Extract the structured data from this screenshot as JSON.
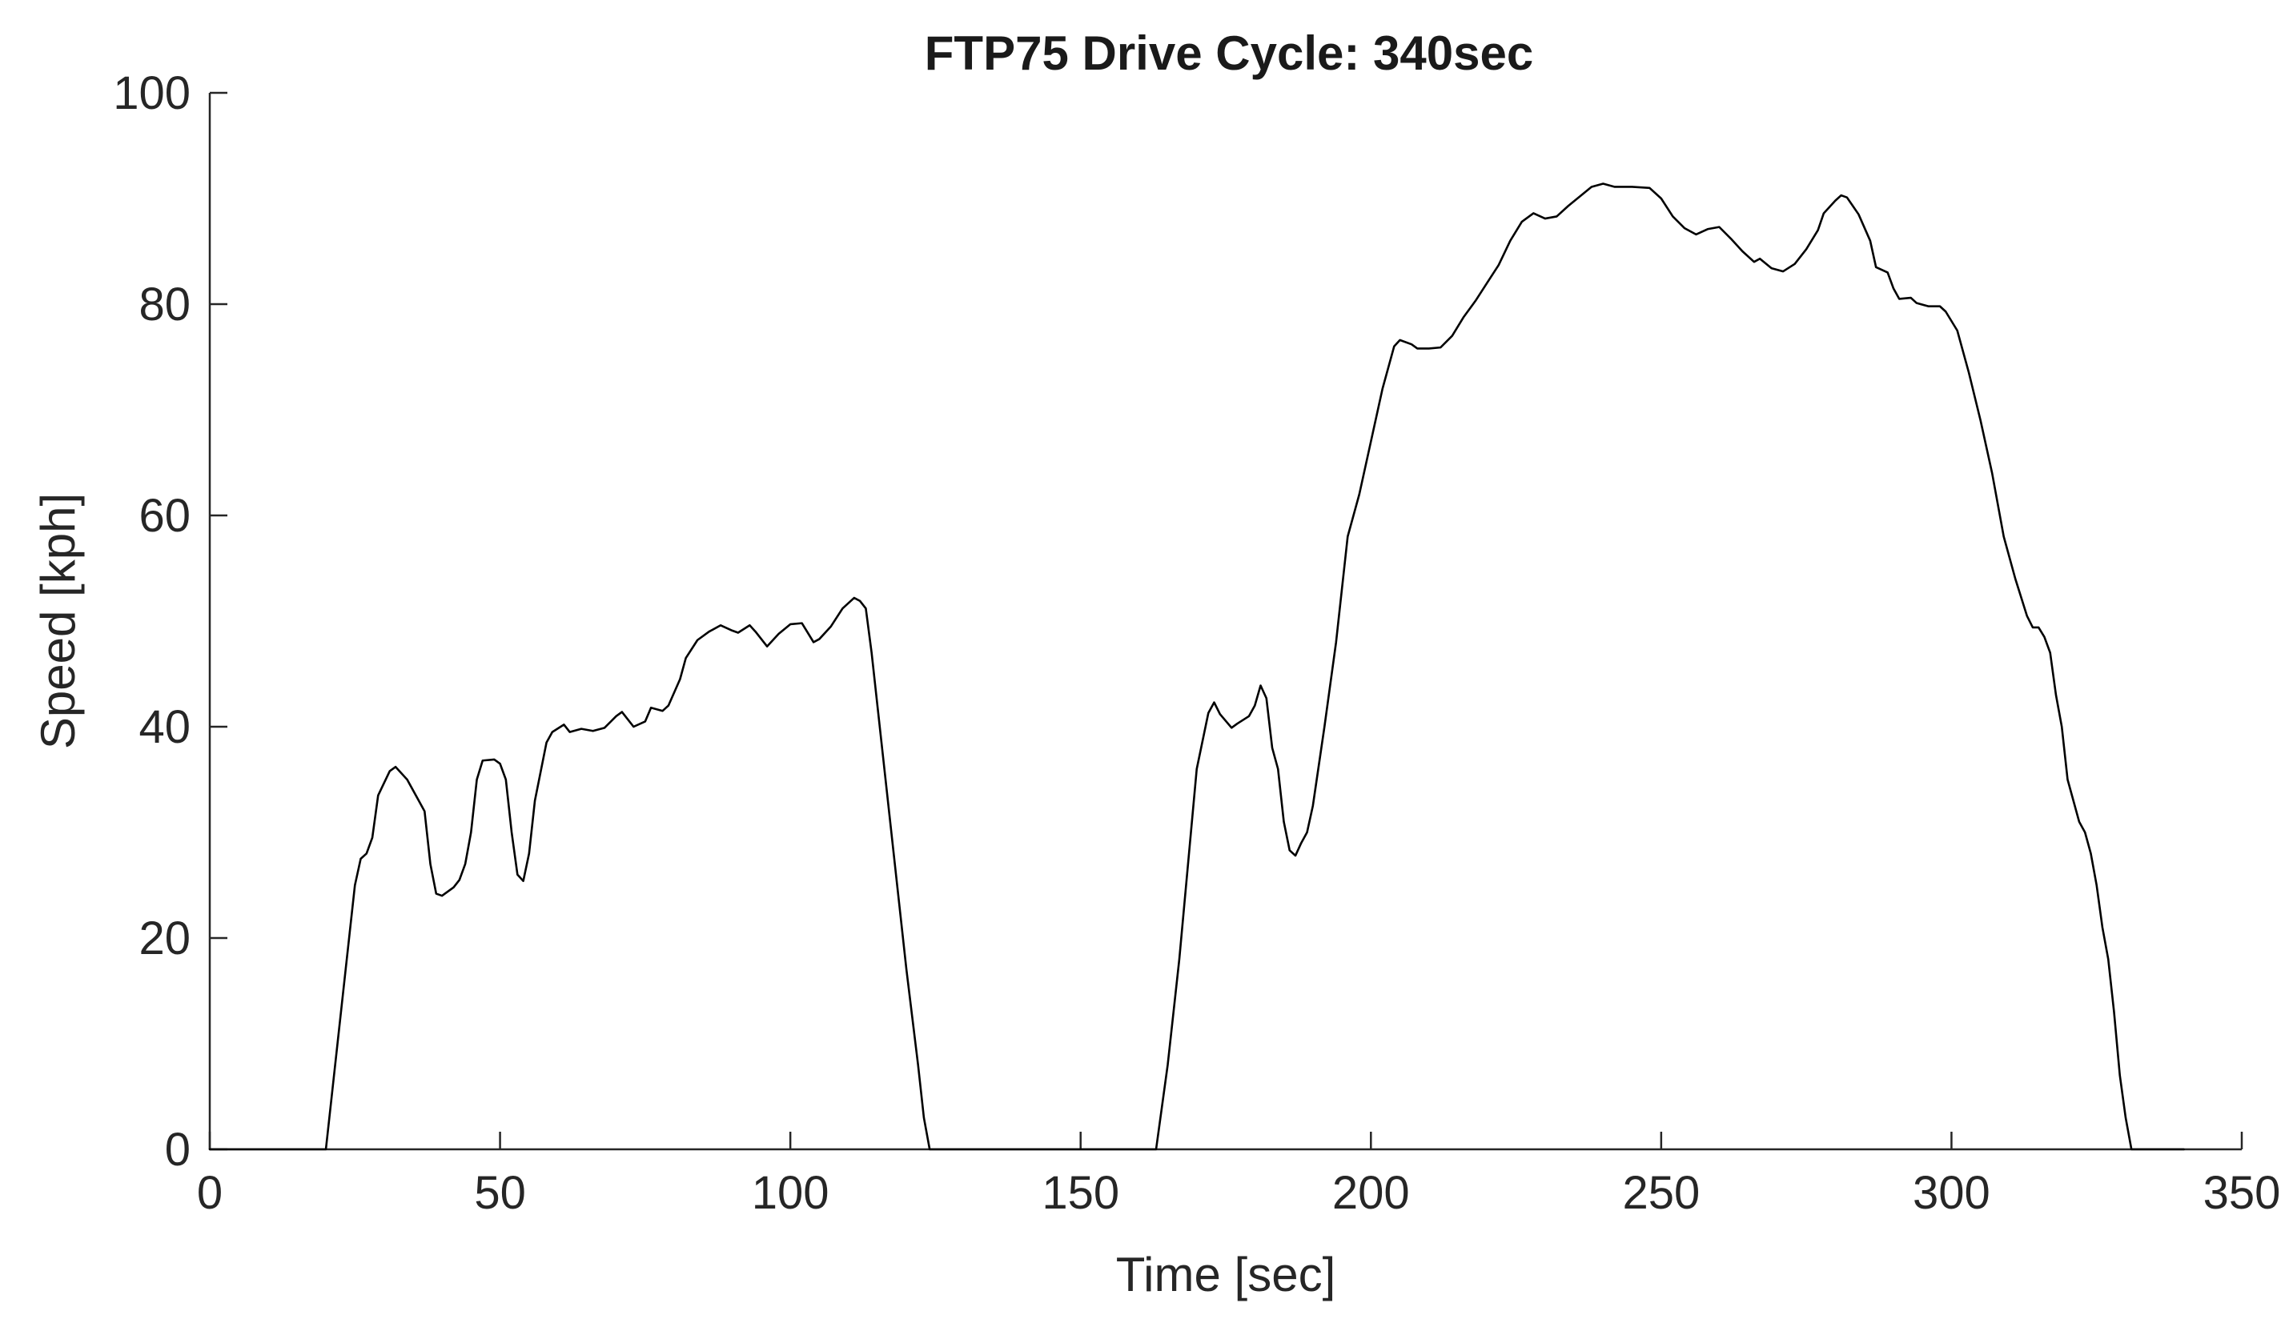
{
  "chart_data": {
    "type": "line",
    "title": "FTP75 Drive Cycle: 340sec",
    "xlabel": "Time [sec]",
    "ylabel": "Speed [kph]",
    "xlim": [
      0,
      350
    ],
    "ylim": [
      0,
      100
    ],
    "xticks": [
      0,
      50,
      100,
      150,
      200,
      250,
      300,
      350
    ],
    "yticks": [
      0,
      20,
      40,
      60,
      80,
      100
    ],
    "grid": false,
    "line_color": "#000000",
    "series": [
      {
        "points": [
          [
            0,
            0
          ],
          [
            20,
            0
          ],
          [
            21,
            5
          ],
          [
            23,
            15
          ],
          [
            25,
            25
          ],
          [
            26,
            27.5
          ],
          [
            27,
            28
          ],
          [
            28,
            29.5
          ],
          [
            29,
            33.5
          ],
          [
            31,
            35.8
          ],
          [
            32,
            36.2
          ],
          [
            34,
            35
          ],
          [
            36,
            33
          ],
          [
            37,
            32
          ],
          [
            38,
            27
          ],
          [
            39,
            24.2
          ],
          [
            40,
            24
          ],
          [
            42,
            24.8
          ],
          [
            43,
            25.5
          ],
          [
            44,
            27
          ],
          [
            45,
            30
          ],
          [
            46,
            35
          ],
          [
            47,
            36.8
          ],
          [
            49,
            36.9
          ],
          [
            50,
            36.5
          ],
          [
            51,
            35
          ],
          [
            52,
            30
          ],
          [
            53,
            26
          ],
          [
            54,
            25.4
          ],
          [
            55,
            28
          ],
          [
            56,
            33
          ],
          [
            58,
            38.5
          ],
          [
            59,
            39.5
          ],
          [
            61,
            40.2
          ],
          [
            62,
            39.5
          ],
          [
            64,
            39.8
          ],
          [
            66,
            39.6
          ],
          [
            68,
            39.9
          ],
          [
            70,
            41
          ],
          [
            71,
            41.4
          ],
          [
            73,
            40
          ],
          [
            75,
            40.5
          ],
          [
            76,
            41.8
          ],
          [
            78,
            41.5
          ],
          [
            79,
            42
          ],
          [
            81,
            44.5
          ],
          [
            82,
            46.5
          ],
          [
            84,
            48.2
          ],
          [
            86,
            49
          ],
          [
            88,
            49.6
          ],
          [
            90,
            49.1
          ],
          [
            91,
            48.9
          ],
          [
            93,
            49.6
          ],
          [
            94,
            49
          ],
          [
            96,
            47.6
          ],
          [
            98,
            48.8
          ],
          [
            100,
            49.7
          ],
          [
            102,
            49.8
          ],
          [
            104,
            48
          ],
          [
            105,
            48.3
          ],
          [
            107,
            49.5
          ],
          [
            109,
            51.2
          ],
          [
            111,
            52.2
          ],
          [
            112,
            51.9
          ],
          [
            113,
            51.2
          ],
          [
            114,
            47
          ],
          [
            116,
            37
          ],
          [
            118,
            27
          ],
          [
            120,
            17
          ],
          [
            122,
            8
          ],
          [
            123,
            3
          ],
          [
            124,
            0
          ],
          [
            125,
            0
          ],
          [
            162,
            0
          ],
          [
            163,
            0
          ],
          [
            165,
            8
          ],
          [
            167,
            18
          ],
          [
            169,
            30
          ],
          [
            170,
            36
          ],
          [
            172,
            41.3
          ],
          [
            173,
            42.3
          ],
          [
            174,
            41.2
          ],
          [
            176,
            39.9
          ],
          [
            177,
            40.3
          ],
          [
            179,
            41
          ],
          [
            180,
            42
          ],
          [
            181,
            43.9
          ],
          [
            182,
            42.7
          ],
          [
            183,
            38
          ],
          [
            184,
            36
          ],
          [
            185,
            31
          ],
          [
            186,
            28.3
          ],
          [
            187,
            27.8
          ],
          [
            188,
            29
          ],
          [
            189,
            30
          ],
          [
            190,
            32.5
          ],
          [
            192,
            40
          ],
          [
            194,
            48
          ],
          [
            196,
            58
          ],
          [
            198,
            62
          ],
          [
            200,
            67
          ],
          [
            202,
            72
          ],
          [
            204,
            76
          ],
          [
            205,
            76.6
          ],
          [
            207,
            76.2
          ],
          [
            208,
            75.8
          ],
          [
            210,
            75.8
          ],
          [
            212,
            75.9
          ],
          [
            214,
            77
          ],
          [
            216,
            78.8
          ],
          [
            218,
            80.3
          ],
          [
            220,
            82
          ],
          [
            222,
            83.7
          ],
          [
            224,
            86
          ],
          [
            226,
            87.8
          ],
          [
            228,
            88.6
          ],
          [
            230,
            88.1
          ],
          [
            232,
            88.3
          ],
          [
            234,
            89.3
          ],
          [
            236,
            90.2
          ],
          [
            238,
            91.1
          ],
          [
            240,
            91.4
          ],
          [
            242,
            91.1
          ],
          [
            245,
            91.1
          ],
          [
            248,
            91
          ],
          [
            250,
            90
          ],
          [
            252,
            88.3
          ],
          [
            254,
            87.2
          ],
          [
            256,
            86.6
          ],
          [
            258,
            87.1
          ],
          [
            260,
            87.3
          ],
          [
            262,
            86.2
          ],
          [
            264,
            85
          ],
          [
            266,
            84
          ],
          [
            267,
            84.3
          ],
          [
            269,
            83.4
          ],
          [
            271,
            83.1
          ],
          [
            273,
            83.8
          ],
          [
            275,
            85.2
          ],
          [
            277,
            87
          ],
          [
            278,
            88.6
          ],
          [
            280,
            89.8
          ],
          [
            281,
            90.3
          ],
          [
            282,
            90.1
          ],
          [
            284,
            88.5
          ],
          [
            286,
            86
          ],
          [
            287,
            83.5
          ],
          [
            289,
            83
          ],
          [
            290,
            81.5
          ],
          [
            291,
            80.5
          ],
          [
            293,
            80.6
          ],
          [
            294,
            80.1
          ],
          [
            296,
            79.8
          ],
          [
            298,
            79.8
          ],
          [
            299,
            79.3
          ],
          [
            301,
            77.5
          ],
          [
            303,
            73.5
          ],
          [
            305,
            69
          ],
          [
            307,
            64
          ],
          [
            309,
            58
          ],
          [
            311,
            54
          ],
          [
            313,
            50.5
          ],
          [
            314,
            49.4
          ],
          [
            315,
            49.4
          ],
          [
            316,
            48.5
          ],
          [
            317,
            47
          ],
          [
            318,
            43
          ],
          [
            319,
            40
          ],
          [
            320,
            35
          ],
          [
            321,
            33
          ],
          [
            322,
            31
          ],
          [
            323,
            30
          ],
          [
            324,
            28
          ],
          [
            325,
            25
          ],
          [
            326,
            21
          ],
          [
            327,
            18
          ],
          [
            328,
            13
          ],
          [
            329,
            7
          ],
          [
            330,
            3
          ],
          [
            331,
            0
          ],
          [
            332,
            0
          ],
          [
            335,
            0
          ],
          [
            338,
            0
          ],
          [
            340,
            0
          ]
        ]
      }
    ]
  }
}
